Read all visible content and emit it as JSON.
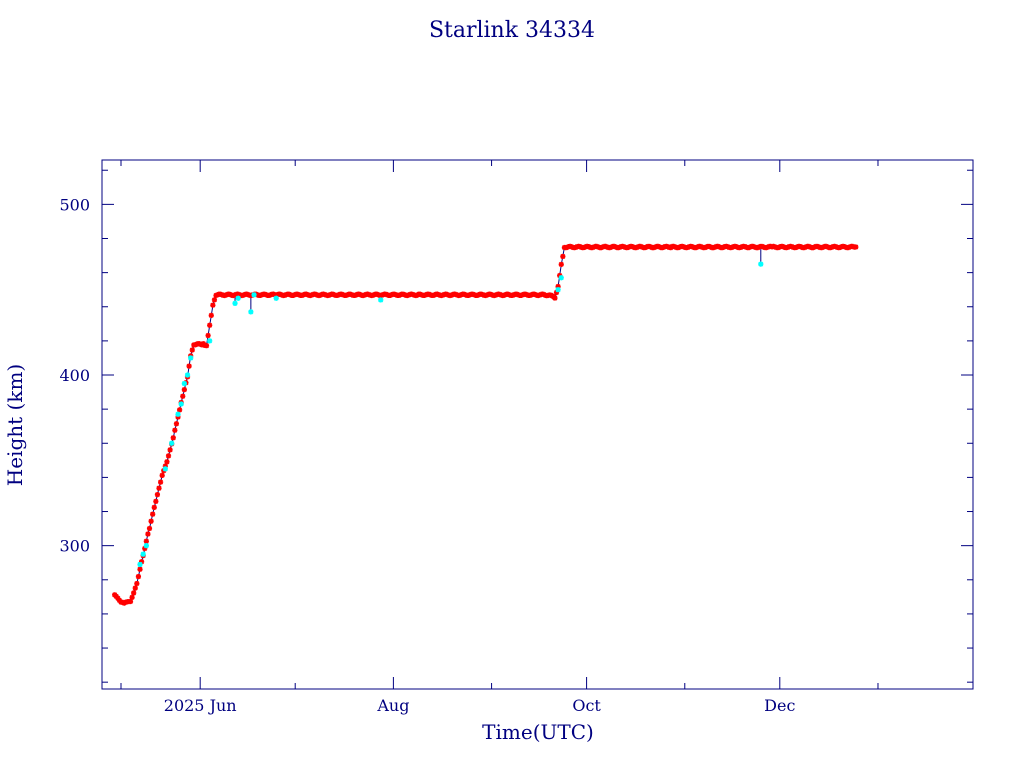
{
  "chart_data": {
    "type": "scatter",
    "title": "Starlink 34334",
    "xlabel": "Time(UTC)",
    "ylabel": "Height (km)",
    "x_start": "2025-05-01",
    "x_end": "2026-01-31",
    "xlim_days": [
      0,
      275
    ],
    "ylim": [
      216,
      526
    ],
    "x_ticks": [
      {
        "day": 31,
        "label": "2025 Jun"
      },
      {
        "day": 92,
        "label": "Aug"
      },
      {
        "day": 153,
        "label": "Oct"
      },
      {
        "day": 214,
        "label": "Dec"
      }
    ],
    "x_minor_days": [
      6,
      61,
      123,
      184,
      245
    ],
    "y_ticks": [
      300,
      400,
      500
    ],
    "y_minor_step": 20,
    "colors": {
      "frame": "#000080",
      "line": "#000080",
      "primary": "#ff0000",
      "secondary": "#00ffff"
    },
    "series": [
      {
        "name": "",
        "color": "#ff0000",
        "trend": [
          [
            4,
            270
          ],
          [
            6,
            267
          ],
          [
            7,
            266
          ],
          [
            9,
            268
          ],
          [
            11,
            279
          ],
          [
            13,
            295
          ],
          [
            15,
            310
          ],
          [
            17,
            325
          ],
          [
            19,
            340
          ],
          [
            21,
            352
          ],
          [
            23,
            368
          ],
          [
            25,
            385
          ],
          [
            27,
            400
          ],
          [
            28,
            412
          ],
          [
            29,
            418
          ],
          [
            32,
            418
          ],
          [
            33,
            416
          ],
          [
            34,
            428
          ],
          [
            35,
            440
          ],
          [
            36,
            447
          ],
          [
            55,
            447
          ],
          [
            100,
            447
          ],
          [
            140,
            447
          ],
          [
            143,
            446
          ],
          [
            144,
            453
          ],
          [
            145,
            466
          ],
          [
            146,
            475
          ],
          [
            180,
            475
          ],
          [
            212,
            475
          ],
          [
            238,
            475
          ]
        ]
      },
      {
        "name": "",
        "color": "#00ffff",
        "points": [
          [
            12,
            289
          ],
          [
            13,
            295
          ],
          [
            14,
            300
          ],
          [
            20,
            345
          ],
          [
            22,
            360
          ],
          [
            24,
            377
          ],
          [
            25,
            383
          ],
          [
            26,
            395
          ],
          [
            27,
            400
          ],
          [
            28,
            410
          ],
          [
            34,
            420
          ],
          [
            42,
            442
          ],
          [
            43,
            445
          ],
          [
            47,
            437
          ],
          [
            48,
            447
          ],
          [
            55,
            445
          ],
          [
            88,
            444
          ],
          [
            144,
            450
          ],
          [
            145,
            457
          ],
          [
            208,
            465
          ]
        ]
      }
    ],
    "dips": [
      {
        "day": 42,
        "from": 447,
        "to": 442
      },
      {
        "day": 47,
        "from": 447,
        "to": 437
      },
      {
        "day": 208,
        "from": 475,
        "to": 465
      }
    ]
  }
}
